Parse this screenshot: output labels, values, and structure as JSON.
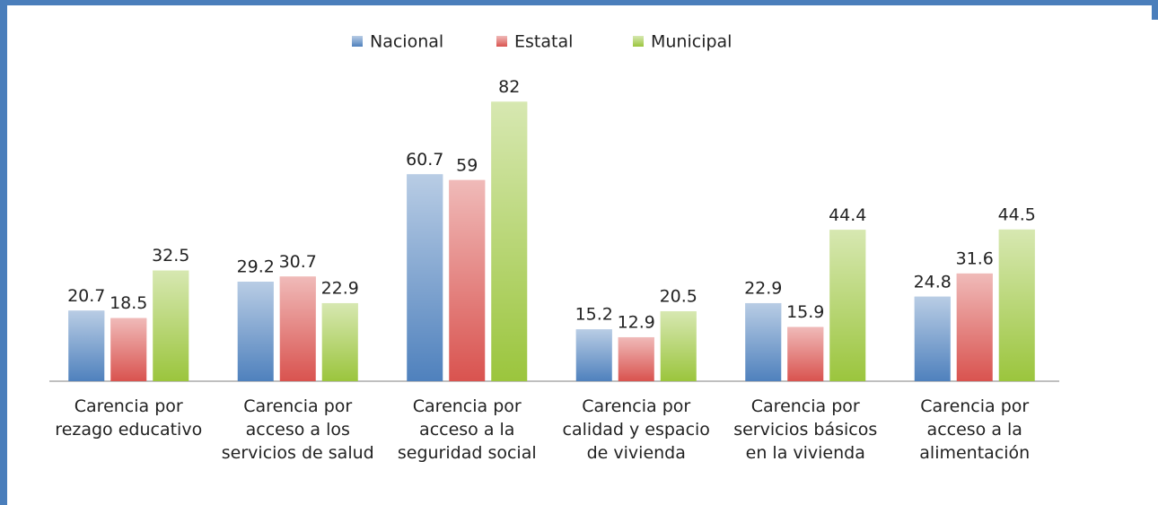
{
  "chart_data": {
    "type": "bar",
    "categories": [
      "Carencia por rezago educativo",
      "Carencia por acceso a los servicios de salud",
      "Carencia por acceso a la seguridad social",
      "Carencia por calidad y espacio de vivienda",
      "Carencia por servicios básicos en la vivienda",
      "Carencia por acceso a la alimentación"
    ],
    "series": [
      {
        "name": "Nacional",
        "color": "#4f81bd",
        "values": [
          20.7,
          29.2,
          60.7,
          15.2,
          22.9,
          24.8
        ]
      },
      {
        "name": "Estatal",
        "color": "#d9534f",
        "values": [
          18.5,
          30.7,
          59,
          12.9,
          15.9,
          31.6
        ]
      },
      {
        "name": "Municipal",
        "color": "#9bc53d",
        "values": [
          32.5,
          22.9,
          82,
          20.5,
          44.4,
          44.5
        ]
      }
    ],
    "legend": "top"
  }
}
